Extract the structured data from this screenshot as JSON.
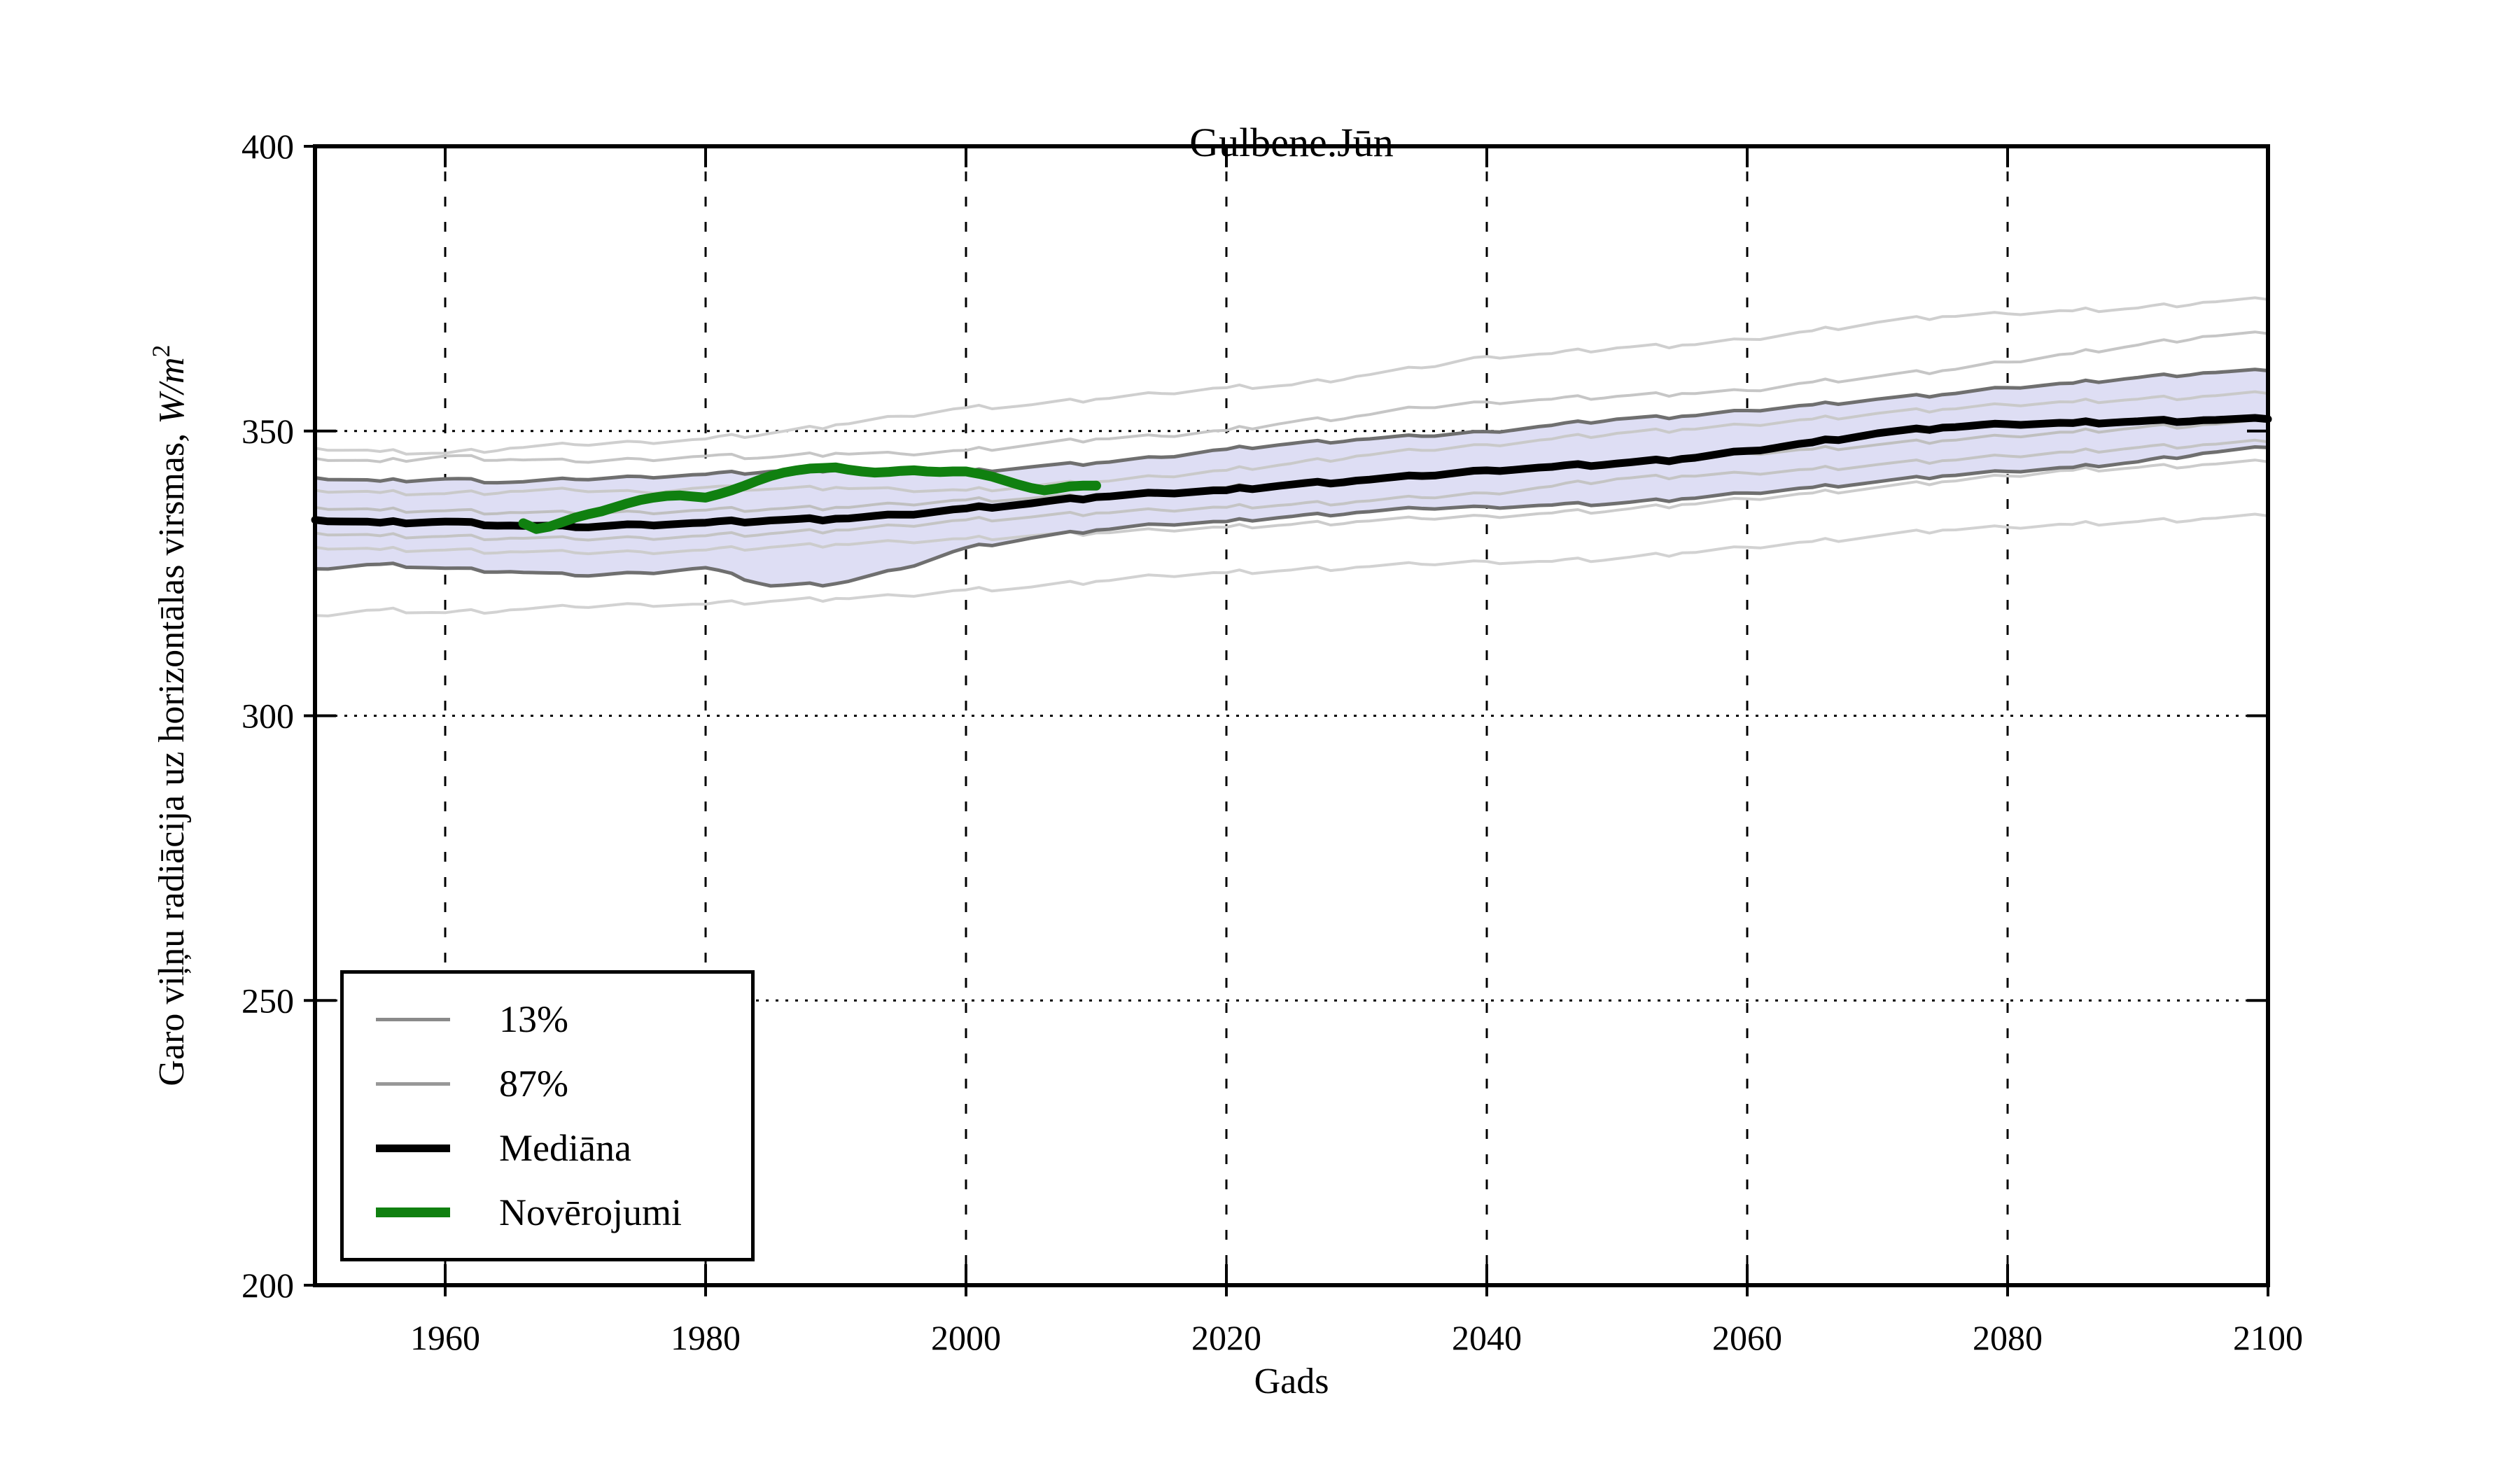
{
  "title": "Gulbene.Jūn",
  "legend": [
    {
      "label": "13%",
      "color": "#8a8a8a",
      "lw": 5
    },
    {
      "label": "87%",
      "color": "#989898",
      "lw": 5
    },
    {
      "label": "Mediāna",
      "color": "#000000",
      "lw": 11
    },
    {
      "label": "Novērojumi",
      "color": "#108010",
      "lw": 14
    }
  ],
  "ylabel_parts": {
    "prefix": "Garo viļņu radiācija uz horizontālas virsmas, ",
    "math": "W/m",
    "sup": "2"
  },
  "chart_data": {
    "type": "line",
    "title": "Gulbene.Jūn",
    "xlabel": "Gads",
    "ylabel": "Garo viļņu radiācija uz horizontālas virsmas, W/m^2",
    "xlim": [
      1950,
      2100
    ],
    "ylim": [
      200,
      400
    ],
    "x_ticks": [
      1960,
      1980,
      2000,
      2020,
      2040,
      2060,
      2080,
      2100
    ],
    "y_ticks": [
      200,
      250,
      300,
      350,
      400
    ],
    "grid": true,
    "legend_position": "lower left",
    "band": {
      "fill": "#dedef4",
      "edge_color": "#6f6f6f",
      "upper_name": "87%",
      "lower_name": "13%"
    },
    "x_years": [
      1950,
      1955,
      1960,
      1965,
      1970,
      1975,
      1980,
      1985,
      1990,
      1995,
      2000,
      2005,
      2010,
      2015,
      2020,
      2025,
      2030,
      2035,
      2040,
      2045,
      2050,
      2055,
      2060,
      2065,
      2070,
      2075,
      2080,
      2085,
      2090,
      2095,
      2100
    ],
    "series": [
      {
        "name": "87%",
        "role": "band-upper",
        "color": "#6f6f6f",
        "width": 5,
        "values": [
          341.8,
          341.2,
          341.6,
          341.0,
          341.5,
          342.0,
          342.4,
          342.9,
          343.2,
          343.0,
          342.9,
          343.7,
          344.4,
          345.4,
          346.8,
          347.8,
          348.5,
          349.1,
          349.9,
          351.0,
          352.1,
          352.6,
          353.6,
          354.6,
          355.6,
          356.4,
          357.6,
          358.4,
          359.4,
          360.2,
          360.6
        ]
      },
      {
        "name": "13%",
        "role": "band-lower",
        "color": "#6f6f6f",
        "width": 5,
        "values": [
          325.8,
          326.6,
          325.9,
          325.3,
          324.6,
          325.1,
          326.0,
          322.8,
          323.2,
          325.8,
          329.5,
          331.2,
          332.6,
          333.6,
          334.1,
          335.0,
          335.7,
          336.4,
          336.7,
          337.0,
          337.3,
          338.1,
          339.1,
          340.1,
          341.1,
          342.1,
          342.9,
          343.6,
          344.6,
          346.1,
          347.1
        ]
      },
      {
        "name": "ensemble-1",
        "role": "ensemble",
        "color": "#cfcfcf",
        "width": 4,
        "values": [
          347.0,
          346.4,
          346.1,
          347.0,
          347.6,
          348.1,
          348.6,
          349.6,
          351.1,
          352.6,
          354.1,
          354.6,
          355.6,
          356.6,
          357.6,
          358.1,
          359.6,
          361.1,
          363.1,
          363.6,
          364.6,
          365.1,
          366.1,
          367.6,
          369.1,
          370.1,
          370.6,
          371.1,
          371.6,
          372.6,
          373.1
        ]
      },
      {
        "name": "ensemble-2",
        "role": "ensemble",
        "color": "#c6c6c6",
        "width": 4,
        "values": [
          345.2,
          344.6,
          345.6,
          345.0,
          344.6,
          345.1,
          345.6,
          345.4,
          346.1,
          346.0,
          346.6,
          347.6,
          348.6,
          349.1,
          350.1,
          351.6,
          352.6,
          354.1,
          355.1,
          355.6,
          356.1,
          356.6,
          357.1,
          358.6,
          359.6,
          360.6,
          362.1,
          363.6,
          365.1,
          366.6,
          367.1
        ]
      },
      {
        "name": "ensemble-3",
        "role": "ensemble",
        "color": "#c9c9c9",
        "width": 4,
        "values": [
          339.6,
          339.2,
          339.0,
          339.4,
          339.6,
          339.3,
          340.1,
          339.8,
          340.1,
          339.7,
          339.6,
          340.3,
          341.1,
          342.0,
          343.1,
          344.3,
          345.6,
          346.6,
          347.6,
          348.6,
          349.6,
          350.3,
          351.1,
          352.1,
          353.1,
          353.8,
          354.6,
          355.1,
          355.6,
          356.1,
          356.6
        ]
      },
      {
        "name": "ensemble-4",
        "role": "ensemble",
        "color": "#bfbfbf",
        "width": 4,
        "values": [
          336.6,
          336.1,
          336.0,
          335.7,
          335.5,
          335.8,
          336.1,
          336.3,
          336.6,
          337.2,
          337.9,
          338.2,
          338.6,
          339.3,
          340.1,
          340.8,
          341.6,
          342.3,
          343.1,
          343.8,
          344.6,
          345.3,
          346.1,
          346.8,
          347.6,
          348.3,
          349.1,
          349.8,
          350.6,
          351.1,
          351.6
        ]
      },
      {
        "name": "ensemble-5",
        "role": "ensemble",
        "color": "#c4c4c4",
        "width": 4,
        "values": [
          332.1,
          331.6,
          331.5,
          331.2,
          331.0,
          331.3,
          331.6,
          332.0,
          332.6,
          333.4,
          334.4,
          334.9,
          335.6,
          336.1,
          336.6,
          337.1,
          337.6,
          338.3,
          339.1,
          340.3,
          341.6,
          342.1,
          342.6,
          343.3,
          344.1,
          344.8,
          345.6,
          346.3,
          347.1,
          347.6,
          348.1
        ]
      },
      {
        "name": "ensemble-6",
        "role": "ensemble",
        "color": "#cccccc",
        "width": 4,
        "values": [
          329.6,
          329.2,
          329.1,
          328.8,
          328.6,
          328.8,
          329.1,
          329.6,
          330.1,
          330.6,
          331.1,
          331.6,
          332.1,
          332.6,
          333.1,
          333.6,
          334.1,
          334.6,
          335.1,
          335.6,
          336.1,
          337.1,
          338.1,
          339.1,
          340.1,
          341.1,
          342.1,
          343.1,
          343.6,
          344.1,
          344.6
        ]
      },
      {
        "name": "ensemble-7",
        "role": "ensemble",
        "color": "#d2d2d2",
        "width": 4,
        "values": [
          317.6,
          318.6,
          318.1,
          318.6,
          319.1,
          319.6,
          319.6,
          320.1,
          320.6,
          321.1,
          322.1,
          322.6,
          323.6,
          324.6,
          325.1,
          325.6,
          326.1,
          326.6,
          327.1,
          327.1,
          327.6,
          328.6,
          329.6,
          330.6,
          331.6,
          332.6,
          333.1,
          333.6,
          334.1,
          334.6,
          335.1
        ]
      },
      {
        "name": "Mediāna",
        "role": "median",
        "color": "#000000",
        "width": 11,
        "values": [
          334.4,
          333.9,
          334.1,
          333.4,
          333.1,
          333.6,
          333.9,
          334.3,
          334.6,
          335.3,
          336.4,
          337.3,
          338.4,
          339.1,
          339.6,
          340.6,
          341.3,
          342.1,
          343.1,
          343.7,
          344.3,
          345.1,
          346.5,
          348.0,
          349.6,
          350.6,
          351.2,
          351.4,
          351.7,
          351.9,
          352.1
        ]
      },
      {
        "name": "Novērojumi",
        "role": "observations",
        "color": "#108010",
        "width": 14,
        "x_start": 1966,
        "x_step": 1,
        "values": [
          333.8,
          332.8,
          333.2,
          334.0,
          334.8,
          335.4,
          335.9,
          336.6,
          337.3,
          337.9,
          338.3,
          338.6,
          338.7,
          338.5,
          338.3,
          338.9,
          339.6,
          340.4,
          341.3,
          342.1,
          342.7,
          343.1,
          343.4,
          343.5,
          343.6,
          343.2,
          342.9,
          342.7,
          342.8,
          343.0,
          343.1,
          342.9,
          342.8,
          342.9,
          342.9,
          342.5,
          342.0,
          341.3,
          340.6,
          340.0,
          339.6,
          339.9,
          340.3,
          340.4,
          340.4
        ]
      }
    ]
  }
}
